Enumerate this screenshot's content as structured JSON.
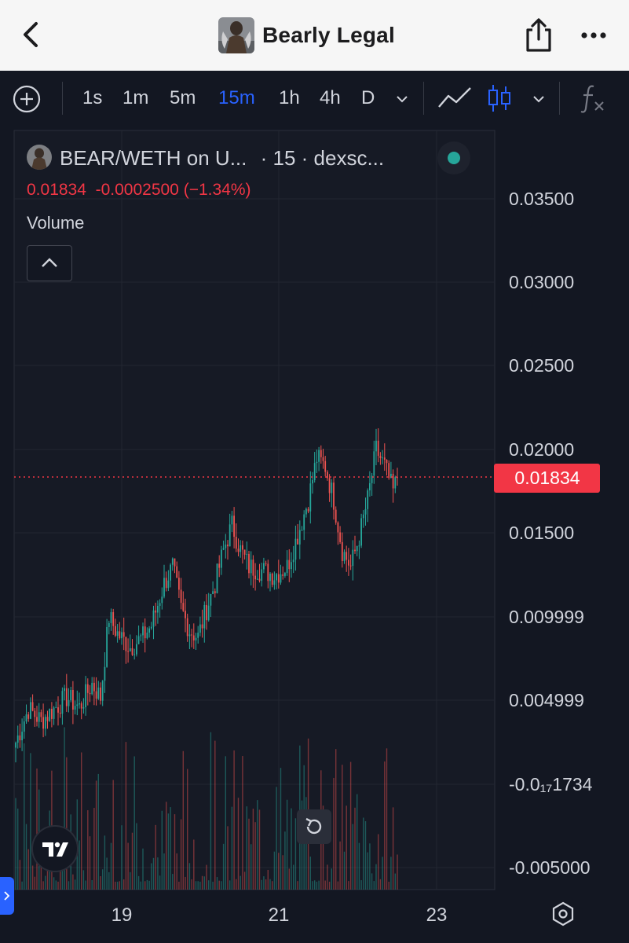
{
  "header": {
    "title": "Bearly Legal"
  },
  "toolbar": {
    "timeframes": [
      "1s",
      "1m",
      "5m",
      "15m",
      "1h",
      "4h",
      "D"
    ],
    "active_timeframe": "15m"
  },
  "legend": {
    "symbol": "BEAR/WETH on U...",
    "interval_source": "· 15 · dexsc...",
    "close": "0.01834",
    "change": "-0.0002500",
    "change_pct": "(−1.34%)",
    "volume_label": "Volume"
  },
  "chart_data": {
    "type": "candlestick",
    "price_axis_labels": [
      "0.03500",
      "0.03000",
      "0.02500",
      "0.02000",
      "0.01500",
      "0.009999",
      "0.004999",
      "-0.0₁₇1734",
      "-0.005000"
    ],
    "x_axis_labels": [
      "19",
      "21",
      "23"
    ],
    "last_price": "0.01834",
    "close_points": [
      [
        0,
        0.0025
      ],
      [
        6,
        0.0045
      ],
      [
        12,
        0.0038
      ],
      [
        18,
        0.0045
      ],
      [
        24,
        0.0052
      ],
      [
        30,
        0.0046
      ],
      [
        36,
        0.006
      ],
      [
        40,
        0.0052
      ],
      [
        44,
        0.01
      ],
      [
        48,
        0.009
      ],
      [
        54,
        0.0082
      ],
      [
        60,
        0.0088
      ],
      [
        64,
        0.0095
      ],
      [
        70,
        0.012
      ],
      [
        74,
        0.013
      ],
      [
        78,
        0.0105
      ],
      [
        82,
        0.0092
      ],
      [
        86,
        0.0088
      ],
      [
        90,
        0.0105
      ],
      [
        94,
        0.012
      ],
      [
        98,
        0.014
      ],
      [
        102,
        0.0155
      ],
      [
        106,
        0.014
      ],
      [
        110,
        0.013
      ],
      [
        116,
        0.0128
      ],
      [
        122,
        0.0125
      ],
      [
        128,
        0.013
      ],
      [
        132,
        0.0145
      ],
      [
        138,
        0.017
      ],
      [
        142,
        0.0195
      ],
      [
        146,
        0.019
      ],
      [
        150,
        0.017
      ],
      [
        154,
        0.014
      ],
      [
        158,
        0.013
      ],
      [
        162,
        0.0148
      ],
      [
        166,
        0.017
      ],
      [
        170,
        0.02
      ],
      [
        174,
        0.019
      ],
      [
        178,
        0.0175
      ],
      [
        180,
        0.0183
      ]
    ],
    "colors": {
      "up": "#26a69a",
      "down": "#ef5350",
      "price_line": "#f23645"
    }
  }
}
